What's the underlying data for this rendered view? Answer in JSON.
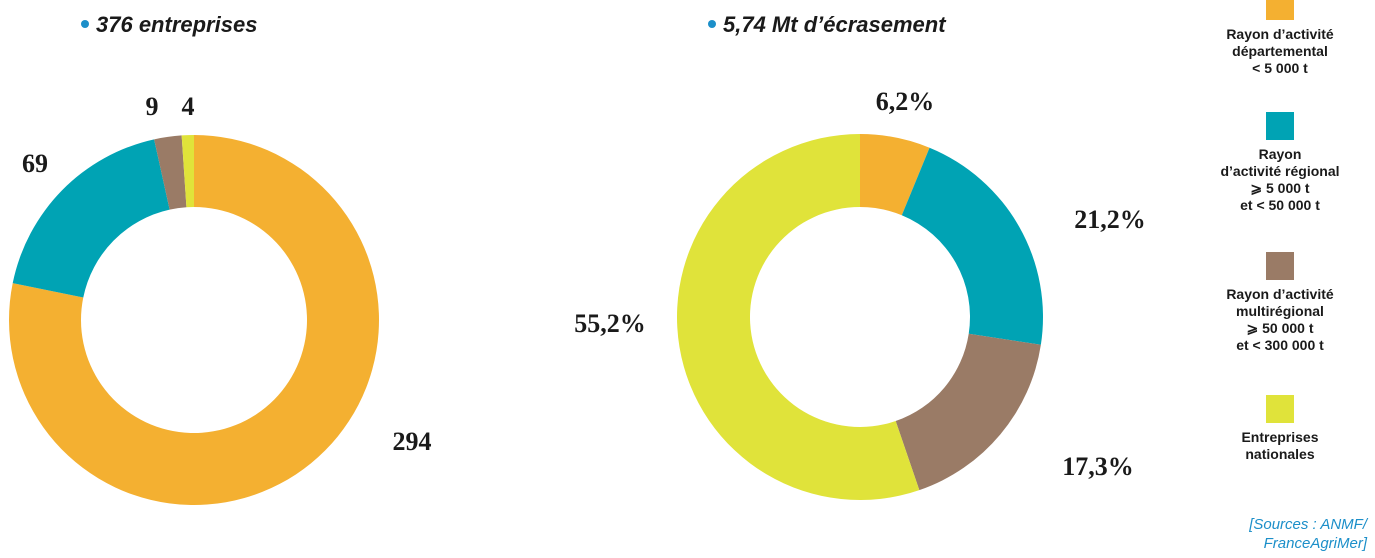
{
  "chart_data": [
    {
      "type": "donut",
      "title": "376 entreprises",
      "values": [
        294,
        69,
        9,
        4
      ],
      "colors": [
        "#f4b031",
        "#00a3b4",
        "#9a7b66",
        "#e0e33a"
      ]
    },
    {
      "type": "donut",
      "title": "5,74 Mt d’écrasement",
      "values": [
        6.2,
        21.2,
        17.3,
        55.2
      ],
      "value_labels": [
        "6,2%",
        "21,2%",
        "17,3%",
        "55,2%"
      ],
      "colors": [
        "#f4b031",
        "#00a3b4",
        "#9a7b66",
        "#e0e33a"
      ]
    }
  ],
  "legend": [
    {
      "label": "Rayon d’activité\ndépartemental\n< 5 000 t",
      "color": "#f4b031"
    },
    {
      "label": "Rayon\nd’activité régional\n⩾ 5 000 t\net < 50 000 t",
      "color": "#00a3b4"
    },
    {
      "label": "Rayon d’activité\nmultirégional\n⩾ 50 000 t\net < 300 000 t",
      "color": "#9a7b66"
    },
    {
      "label": "Entreprises\nnationales",
      "color": "#e0e33a"
    }
  ],
  "source": "[Sources : ANMF/\nFranceAgriMer]"
}
